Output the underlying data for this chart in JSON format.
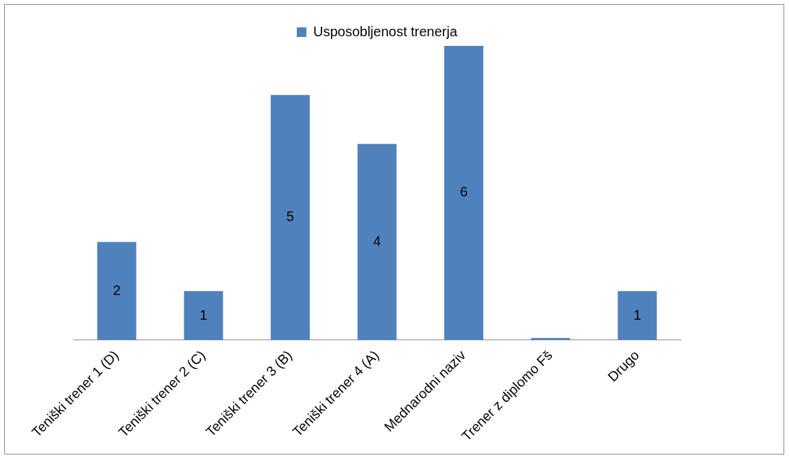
{
  "chart_data": {
    "type": "bar",
    "categories": [
      "Teniški trener 1 (D)",
      "Teniški trener 2 (C)",
      "Teniški trener 3 (B)",
      "Teniški trener 4 (A)",
      "Mednarodni naziv",
      "Trener z diplomo Fš",
      "Drugo"
    ],
    "series": [
      {
        "name": "Usposobljenost trenerja",
        "color": "#4f81bd",
        "values": [
          2,
          1,
          5,
          4,
          6,
          0,
          1
        ],
        "value_labels": [
          "2",
          "1",
          "5",
          "4",
          "6",
          null,
          "1"
        ]
      }
    ],
    "legend": "top"
  }
}
